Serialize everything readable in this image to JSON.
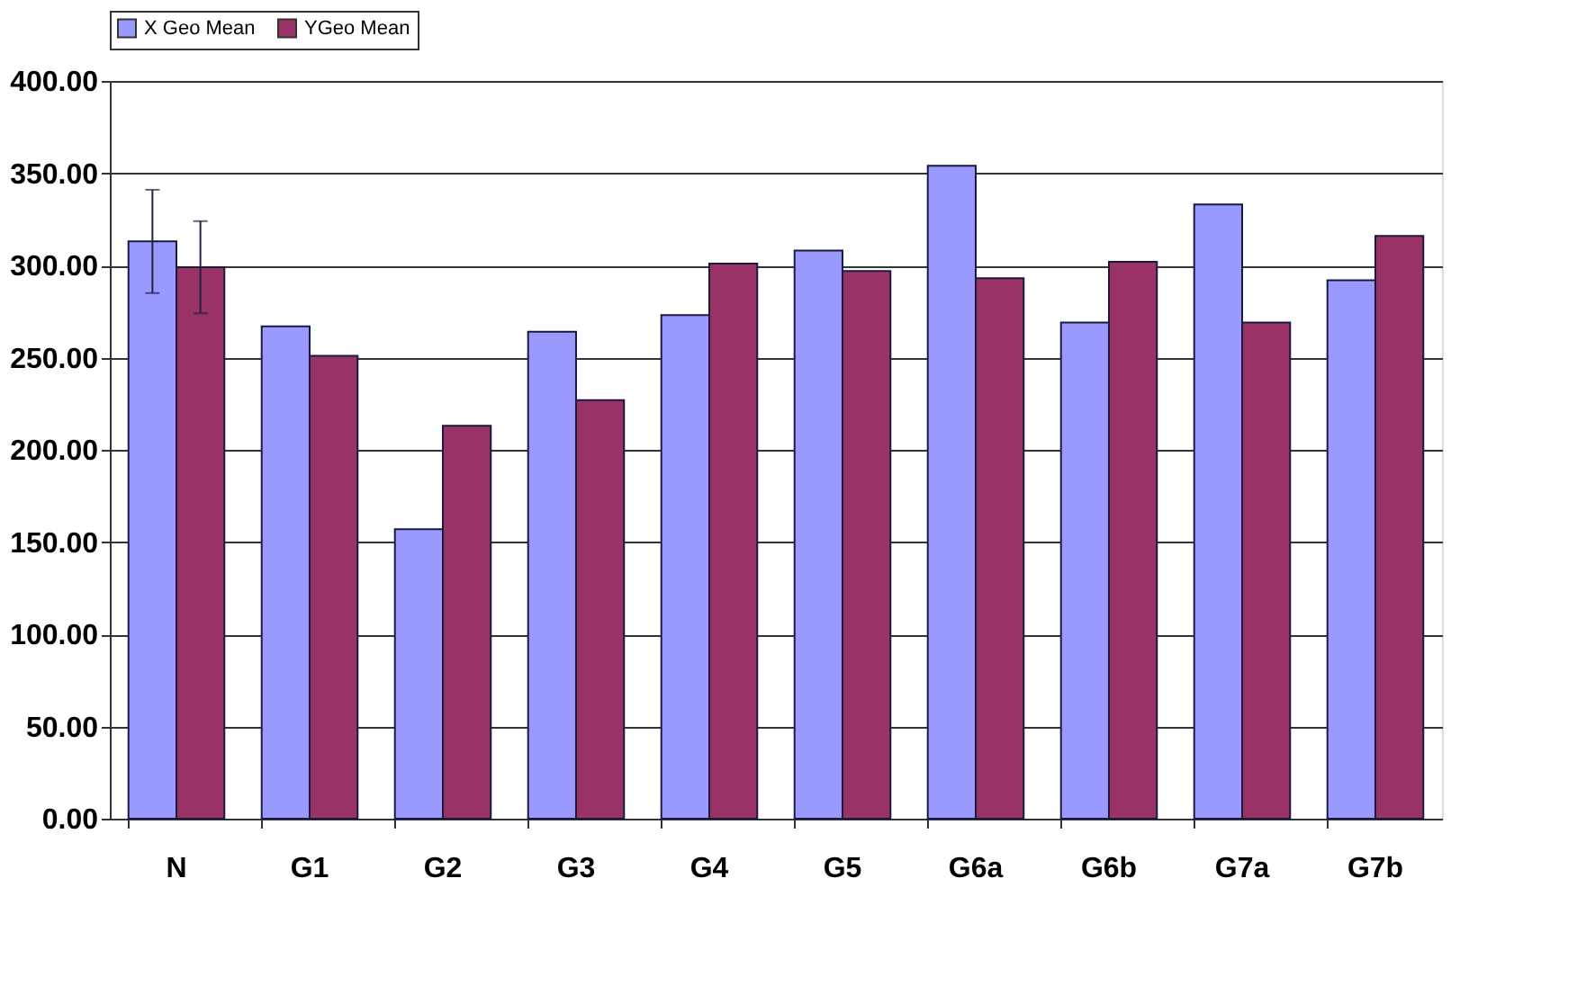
{
  "chart_data": {
    "type": "bar",
    "categories": [
      "N",
      "G1",
      "G2",
      "G3",
      "G4",
      "G5",
      "G6a",
      "G6b",
      "G7a",
      "G7b"
    ],
    "series": [
      {
        "name": "X Geo Mean",
        "color": "#9999ff",
        "values": [
          313,
          267,
          157,
          264,
          273,
          308,
          354,
          269,
          333,
          292
        ],
        "errors": [
          28,
          null,
          null,
          null,
          null,
          null,
          null,
          null,
          null,
          null
        ]
      },
      {
        "name": "YGeo Mean",
        "color": "#993366",
        "values": [
          299,
          251,
          213,
          227,
          301,
          297,
          293,
          302,
          269,
          316
        ],
        "errors": [
          25,
          null,
          null,
          null,
          null,
          null,
          null,
          null,
          null,
          null
        ]
      }
    ],
    "ylim": [
      0,
      400
    ],
    "yticks": [
      {
        "value": 0,
        "label": "0.00"
      },
      {
        "value": 50,
        "label": "50.00"
      },
      {
        "value": 100,
        "label": "100.00"
      },
      {
        "value": 150,
        "label": "150.00"
      },
      {
        "value": 200,
        "label": "200.00"
      },
      {
        "value": 250,
        "label": "250.00"
      },
      {
        "value": 300,
        "label": "300.00"
      },
      {
        "value": 350,
        "label": "350.00"
      },
      {
        "value": 400,
        "label": "400.00"
      }
    ],
    "grid": "y",
    "legend": "top"
  }
}
